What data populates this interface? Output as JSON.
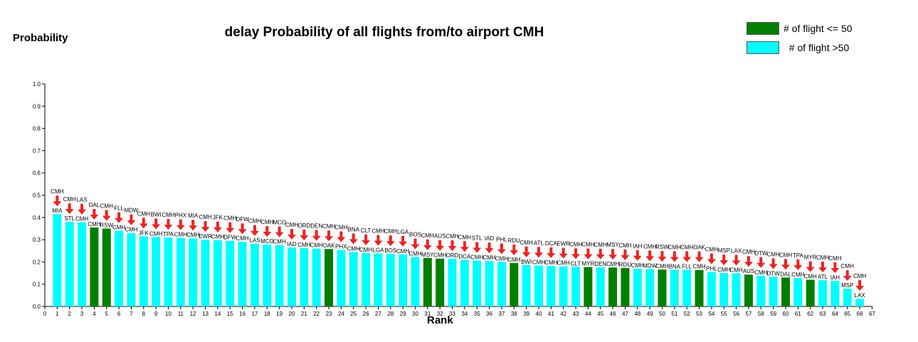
{
  "title": "delay Probability of all flights from/to airport CMH",
  "ylabel": "Probability",
  "xlabel": "Rank",
  "colors": {
    "small": "#008000",
    "large": "#00ffff",
    "arrow": "#ee2222"
  },
  "legend": [
    {
      "label": "# of flight <= 50",
      "color": "#008000"
    },
    {
      "label": "  # of flight >50",
      "color": "#00ffff"
    }
  ],
  "chart_data": {
    "type": "bar",
    "title": "delay Probability of all flights from/to airport CMH",
    "xlabel": "Rank",
    "ylabel": "Probability",
    "xlim": [
      0,
      67
    ],
    "ylim": [
      0,
      1.0
    ],
    "yticks": [
      "0.0",
      "0.1",
      "0.2",
      "0.3",
      "0.4",
      "0.5",
      "0.6",
      "0.7",
      "0.8",
      "0.9",
      "1.0"
    ],
    "xticks": [
      "0",
      "1",
      "2",
      "3",
      "4",
      "5",
      "6",
      "7",
      "8",
      "9",
      "10",
      "11",
      "12",
      "13",
      "14",
      "15",
      "16",
      "17",
      "18",
      "19",
      "20",
      "21",
      "22",
      "23",
      "24",
      "25",
      "26",
      "27",
      "28",
      "29",
      "30",
      "31",
      "32",
      "33",
      "34",
      "35",
      "36",
      "37",
      "38",
      "39",
      "40",
      "41",
      "42",
      "43",
      "44",
      "45",
      "46",
      "47",
      "48",
      "49",
      "50",
      "51",
      "52",
      "53",
      "54",
      "55",
      "56",
      "57",
      "58",
      "59",
      "60",
      "61",
      "62",
      "63",
      "64",
      "65",
      "66",
      "67"
    ],
    "bars": [
      {
        "rank": 1,
        "value": 0.415,
        "from": "CMH",
        "to": "MIA",
        "group": "large"
      },
      {
        "rank": 2,
        "value": 0.38,
        "from": "CMH",
        "to": "STL",
        "group": "large"
      },
      {
        "rank": 3,
        "value": 0.378,
        "from": "LAS",
        "to": "CMH",
        "group": "large"
      },
      {
        "rank": 4,
        "value": 0.355,
        "from": "DAL",
        "to": "CMH",
        "group": "small"
      },
      {
        "rank": 5,
        "value": 0.35,
        "from": "CMH",
        "to": "RSW",
        "group": "small"
      },
      {
        "rank": 6,
        "value": 0.34,
        "from": "FLL",
        "to": "CMH",
        "group": "large"
      },
      {
        "rank": 7,
        "value": 0.33,
        "from": "MDW",
        "to": "CMH",
        "group": "large"
      },
      {
        "rank": 8,
        "value": 0.315,
        "from": "CMH",
        "to": "JFK",
        "group": "large"
      },
      {
        "rank": 9,
        "value": 0.312,
        "from": "BWI",
        "to": "CMH",
        "group": "large"
      },
      {
        "rank": 10,
        "value": 0.31,
        "from": "CMH",
        "to": "TPA",
        "group": "large"
      },
      {
        "rank": 11,
        "value": 0.308,
        "from": "PHX",
        "to": "CMH",
        "group": "large"
      },
      {
        "rank": 12,
        "value": 0.306,
        "from": "MIA",
        "to": "CMH",
        "group": "large"
      },
      {
        "rank": 13,
        "value": 0.3,
        "from": "CMH",
        "to": "EWR",
        "group": "large"
      },
      {
        "rank": 14,
        "value": 0.298,
        "from": "JFK",
        "to": "CMH",
        "group": "large"
      },
      {
        "rank": 15,
        "value": 0.295,
        "from": "CMH",
        "to": "DFW",
        "group": "large"
      },
      {
        "rank": 16,
        "value": 0.29,
        "from": "DFW",
        "to": "CMH",
        "group": "large"
      },
      {
        "rank": 17,
        "value": 0.282,
        "from": "CMH",
        "to": "LAS",
        "group": "large"
      },
      {
        "rank": 18,
        "value": 0.278,
        "from": "CMH",
        "to": "MCO",
        "group": "large"
      },
      {
        "rank": 19,
        "value": 0.276,
        "from": "MCO",
        "to": "CMH",
        "group": "large"
      },
      {
        "rank": 20,
        "value": 0.265,
        "from": "CMH",
        "to": "IAD",
        "group": "large"
      },
      {
        "rank": 21,
        "value": 0.262,
        "from": "ORD",
        "to": "CMH",
        "group": "large"
      },
      {
        "rank": 22,
        "value": 0.26,
        "from": "DEN",
        "to": "CMH",
        "group": "large"
      },
      {
        "rank": 23,
        "value": 0.258,
        "from": "CMH",
        "to": "OAK",
        "group": "small"
      },
      {
        "rank": 24,
        "value": 0.254,
        "from": "CMH",
        "to": "PHX",
        "group": "large"
      },
      {
        "rank": 25,
        "value": 0.245,
        "from": "BNA",
        "to": "CMH",
        "group": "large"
      },
      {
        "rank": 26,
        "value": 0.24,
        "from": "CLT",
        "to": "CMH",
        "group": "large"
      },
      {
        "rank": 27,
        "value": 0.238,
        "from": "CMH",
        "to": "LGA",
        "group": "large"
      },
      {
        "rank": 28,
        "value": 0.236,
        "from": "CMH",
        "to": "BOS",
        "group": "large"
      },
      {
        "rank": 29,
        "value": 0.234,
        "from": "LGA",
        "to": "CMH",
        "group": "large"
      },
      {
        "rank": 30,
        "value": 0.222,
        "from": "BOS",
        "to": "CMH",
        "group": "large"
      },
      {
        "rank": 31,
        "value": 0.218,
        "from": "CMH",
        "to": "MSY",
        "group": "small"
      },
      {
        "rank": 32,
        "value": 0.215,
        "from": "AUS",
        "to": "CMH",
        "group": "small"
      },
      {
        "rank": 33,
        "value": 0.214,
        "from": "CMH",
        "to": "ORD",
        "group": "large"
      },
      {
        "rank": 34,
        "value": 0.21,
        "from": "CMH",
        "to": "DCA",
        "group": "large"
      },
      {
        "rank": 35,
        "value": 0.206,
        "from": "STL",
        "to": "CMH",
        "group": "large"
      },
      {
        "rank": 36,
        "value": 0.204,
        "from": "IAD",
        "to": "CMH",
        "group": "large"
      },
      {
        "rank": 37,
        "value": 0.2,
        "from": "PHL",
        "to": "CMH",
        "group": "large"
      },
      {
        "rank": 38,
        "value": 0.195,
        "from": "RDU",
        "to": "CMH",
        "group": "small"
      },
      {
        "rank": 39,
        "value": 0.186,
        "from": "CMH",
        "to": "BWI",
        "group": "large"
      },
      {
        "rank": 40,
        "value": 0.184,
        "from": "ATL",
        "to": "CMH",
        "group": "large"
      },
      {
        "rank": 41,
        "value": 0.182,
        "from": "DCA",
        "to": "CMH",
        "group": "large"
      },
      {
        "rank": 42,
        "value": 0.18,
        "from": "EWR",
        "to": "CMH",
        "group": "large"
      },
      {
        "rank": 43,
        "value": 0.178,
        "from": "CMH",
        "to": "CLT",
        "group": "large"
      },
      {
        "rank": 44,
        "value": 0.177,
        "from": "CMH",
        "to": "MYR",
        "group": "small"
      },
      {
        "rank": 45,
        "value": 0.176,
        "from": "CMH",
        "to": "DEN",
        "group": "large"
      },
      {
        "rank": 46,
        "value": 0.175,
        "from": "MSY",
        "to": "CMH",
        "group": "small"
      },
      {
        "rank": 47,
        "value": 0.173,
        "from": "CMH",
        "to": "RDU",
        "group": "small"
      },
      {
        "rank": 48,
        "value": 0.17,
        "from": "IAH",
        "to": "CMH",
        "group": "large"
      },
      {
        "rank": 49,
        "value": 0.168,
        "from": "CMH",
        "to": "MDW",
        "group": "large"
      },
      {
        "rank": 50,
        "value": 0.166,
        "from": "RSW",
        "to": "CMH",
        "group": "small"
      },
      {
        "rank": 51,
        "value": 0.165,
        "from": "CMH",
        "to": "BNA",
        "group": "large"
      },
      {
        "rank": 52,
        "value": 0.165,
        "from": "CMH",
        "to": "FLL",
        "group": "large"
      },
      {
        "rank": 53,
        "value": 0.164,
        "from": "OAK",
        "to": "CMH",
        "group": "small"
      },
      {
        "rank": 54,
        "value": 0.155,
        "from": "CMH",
        "to": "PHL",
        "group": "large"
      },
      {
        "rank": 55,
        "value": 0.15,
        "from": "MSP",
        "to": "CMH",
        "group": "large"
      },
      {
        "rank": 56,
        "value": 0.149,
        "from": "LAX",
        "to": "CMH",
        "group": "large"
      },
      {
        "rank": 57,
        "value": 0.143,
        "from": "CMH",
        "to": "AUS",
        "group": "small"
      },
      {
        "rank": 58,
        "value": 0.138,
        "from": "DTW",
        "to": "CMH",
        "group": "large"
      },
      {
        "rank": 59,
        "value": 0.133,
        "from": "CMH",
        "to": "DTW",
        "group": "large"
      },
      {
        "rank": 60,
        "value": 0.13,
        "from": "CMH",
        "to": "DAL",
        "group": "small"
      },
      {
        "rank": 61,
        "value": 0.128,
        "from": "TPA",
        "to": "CMH",
        "group": "large"
      },
      {
        "rank": 62,
        "value": 0.12,
        "from": "MYR",
        "to": "CMH",
        "group": "small"
      },
      {
        "rank": 63,
        "value": 0.118,
        "from": "CMH",
        "to": "ATL",
        "group": "large"
      },
      {
        "rank": 64,
        "value": 0.115,
        "from": "CMH",
        "to": "IAH",
        "group": "large"
      },
      {
        "rank": 65,
        "value": 0.08,
        "from": "CMH",
        "to": "MSP",
        "group": "large"
      },
      {
        "rank": 66,
        "value": 0.035,
        "from": "CMH",
        "to": "LAX",
        "group": "large"
      }
    ]
  }
}
